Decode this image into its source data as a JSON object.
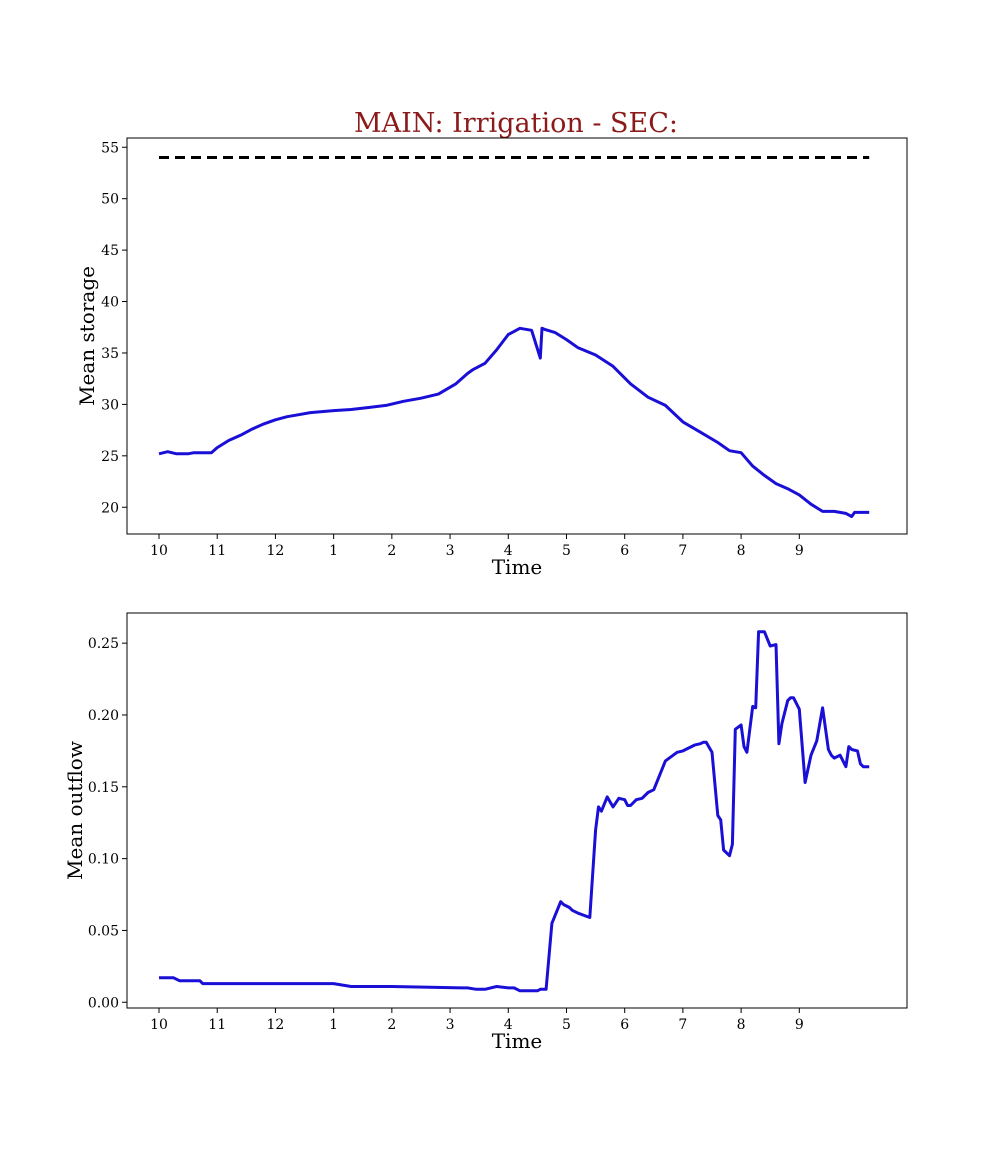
{
  "figure": {
    "title": "MAIN: Irrigation - SEC:",
    "title_color": "#8b1a1a",
    "series_color": "#1a0fd6",
    "reference_color": "#000000"
  },
  "chart_data": [
    {
      "type": "line",
      "title": "MAIN: Irrigation - SEC:",
      "xlabel": "Time",
      "ylabel": "Mean storage",
      "xlim": [
        -0.55,
        12.85
      ],
      "ylim": [
        17.4,
        55.9
      ],
      "x_ticks": [
        0,
        1,
        2,
        3,
        4,
        5,
        6,
        7,
        8,
        9,
        10,
        11
      ],
      "x_tick_labels": [
        "10",
        "11",
        "12",
        "1",
        "2",
        "3",
        "4",
        "5",
        "6",
        "7",
        "8",
        "9"
      ],
      "y_ticks": [
        20,
        25,
        30,
        35,
        40,
        45,
        50,
        55
      ],
      "y_tick_labels": [
        "20",
        "25",
        "30",
        "35",
        "40",
        "45",
        "50",
        "55"
      ],
      "grid": false,
      "series": [
        {
          "style": "solid",
          "x": [
            0,
            0.15,
            0.3,
            0.5,
            0.6,
            0.75,
            0.9,
            1.0,
            1.2,
            1.4,
            1.6,
            1.8,
            2.0,
            2.2,
            2.4,
            2.6,
            2.8,
            3.0,
            3.3,
            3.6,
            3.9,
            4.2,
            4.5,
            4.8,
            5.1,
            5.3,
            5.4,
            5.6,
            5.8,
            6.0,
            6.2,
            6.4,
            6.55,
            6.58,
            6.62,
            6.8,
            7.0,
            7.2,
            7.5,
            7.8,
            8.1,
            8.4,
            8.7,
            9.0,
            9.3,
            9.6,
            9.8,
            10.0,
            10.2,
            10.4,
            10.6,
            10.8,
            11.0,
            11.2,
            11.4,
            11.6,
            11.8,
            11.9,
            11.95,
            12.0,
            12.2
          ],
          "y": [
            25.2,
            25.4,
            25.2,
            25.2,
            25.3,
            25.3,
            25.3,
            25.8,
            26.5,
            27.0,
            27.6,
            28.1,
            28.5,
            28.8,
            29.0,
            29.2,
            29.3,
            29.4,
            29.5,
            29.7,
            29.9,
            30.3,
            30.6,
            31.0,
            32.0,
            33.0,
            33.4,
            34.0,
            35.3,
            36.8,
            37.4,
            37.2,
            34.5,
            37.4,
            37.3,
            37.0,
            36.3,
            35.5,
            34.8,
            33.7,
            32.0,
            30.7,
            29.9,
            28.3,
            27.3,
            26.3,
            25.5,
            25.3,
            24.0,
            23.1,
            22.3,
            21.8,
            21.2,
            20.3,
            19.6,
            19.6,
            19.4,
            19.1,
            19.5,
            19.5,
            19.5
          ]
        },
        {
          "style": "dashed",
          "x": [
            0,
            12.2
          ],
          "y": [
            54.0,
            54.0
          ]
        }
      ]
    },
    {
      "type": "line",
      "xlabel": "Time",
      "ylabel": "Mean outflow",
      "xlim": [
        -0.55,
        12.85
      ],
      "ylim": [
        -0.004,
        0.271
      ],
      "x_ticks": [
        0,
        1,
        2,
        3,
        4,
        5,
        6,
        7,
        8,
        9,
        10,
        11
      ],
      "x_tick_labels": [
        "10",
        "11",
        "12",
        "1",
        "2",
        "3",
        "4",
        "5",
        "6",
        "7",
        "8",
        "9"
      ],
      "y_ticks": [
        0.0,
        0.05,
        0.1,
        0.15,
        0.2,
        0.25
      ],
      "y_tick_labels": [
        "0.00",
        "0.05",
        "0.10",
        "0.15",
        "0.20",
        "0.25"
      ],
      "grid": false,
      "series": [
        {
          "style": "solid",
          "x": [
            0,
            0.25,
            0.35,
            0.7,
            0.75,
            1.0,
            3.0,
            3.3,
            4.0,
            5.2,
            5.3,
            5.45,
            5.55,
            5.6,
            5.8,
            6.0,
            6.1,
            6.2,
            6.3,
            6.45,
            6.5,
            6.55,
            6.65,
            6.75,
            6.9,
            6.95,
            7.0,
            7.05,
            7.1,
            7.2,
            7.4,
            7.5,
            7.55,
            7.6,
            7.7,
            7.8,
            7.9,
            8.0,
            8.05,
            8.1,
            8.2,
            8.3,
            8.4,
            8.5,
            8.7,
            8.9,
            9.0,
            9.1,
            9.2,
            9.3,
            9.35,
            9.4,
            9.5,
            9.6,
            9.65,
            9.7,
            9.8,
            9.85,
            9.9,
            10.0,
            10.05,
            10.1,
            10.2,
            10.25,
            10.3,
            10.4,
            10.5,
            10.6,
            10.65,
            10.7,
            10.8,
            10.85,
            10.9,
            11.0,
            11.1,
            11.2,
            11.3,
            11.4,
            11.5,
            11.55,
            11.6,
            11.7,
            11.8,
            11.85,
            11.9,
            12.0,
            12.05,
            12.1,
            12.2
          ],
          "y": [
            0.017,
            0.017,
            0.015,
            0.015,
            0.013,
            0.013,
            0.013,
            0.011,
            0.011,
            0.01,
            0.01,
            0.009,
            0.009,
            0.009,
            0.011,
            0.01,
            0.01,
            0.008,
            0.008,
            0.008,
            0.008,
            0.009,
            0.009,
            0.055,
            0.07,
            0.068,
            0.067,
            0.066,
            0.064,
            0.062,
            0.059,
            0.12,
            0.136,
            0.133,
            0.143,
            0.136,
            0.142,
            0.141,
            0.137,
            0.137,
            0.141,
            0.142,
            0.146,
            0.148,
            0.168,
            0.174,
            0.175,
            0.177,
            0.179,
            0.18,
            0.181,
            0.181,
            0.174,
            0.13,
            0.127,
            0.106,
            0.102,
            0.11,
            0.19,
            0.193,
            0.178,
            0.174,
            0.206,
            0.205,
            0.258,
            0.258,
            0.248,
            0.249,
            0.18,
            0.194,
            0.21,
            0.212,
            0.212,
            0.204,
            0.153,
            0.172,
            0.182,
            0.205,
            0.176,
            0.172,
            0.17,
            0.172,
            0.164,
            0.178,
            0.176,
            0.175,
            0.166,
            0.164,
            0.164
          ]
        }
      ]
    }
  ]
}
